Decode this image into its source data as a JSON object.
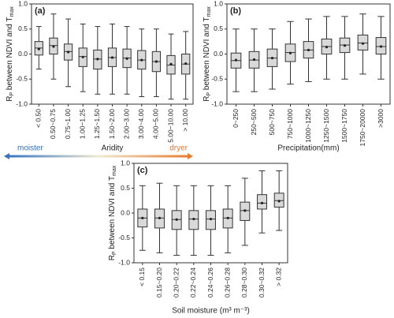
{
  "chart_data": [
    {
      "type": "box",
      "panel_label": "(a)",
      "xlabel": "Aridity",
      "arrow_labels": [
        "moister",
        "dryer"
      ],
      "ylabel_parts": [
        "R",
        "P",
        " between NDVI and T",
        "max"
      ],
      "categories": [
        "< 0.50",
        "0.50~0.75",
        "0.75~1.00",
        "1.00~1.25",
        "1.25~1.50",
        "1.50~2.00",
        "2.00~3.00",
        "3.00~4.00",
        "4.00~5.00",
        "5.00~10.00",
        "> 10.00"
      ],
      "whisker_low": [
        -0.3,
        -0.5,
        -0.65,
        -0.75,
        -0.8,
        -0.8,
        -0.8,
        -0.85,
        -0.85,
        -0.9,
        -0.9
      ],
      "q1": [
        -0.02,
        0.0,
        -0.12,
        -0.25,
        -0.3,
        -0.25,
        -0.27,
        -0.3,
        -0.35,
        -0.4,
        -0.4
      ],
      "median": [
        0.12,
        0.17,
        0.05,
        -0.05,
        -0.1,
        -0.07,
        -0.08,
        -0.12,
        -0.15,
        -0.22,
        -0.2
      ],
      "q3": [
        0.25,
        0.32,
        0.2,
        0.12,
        0.08,
        0.12,
        0.1,
        0.07,
        0.05,
        -0.03,
        0.0
      ],
      "whisker_high": [
        0.55,
        0.8,
        0.7,
        0.6,
        0.55,
        0.6,
        0.55,
        0.5,
        0.5,
        0.4,
        0.45
      ],
      "mean": [
        0.1,
        0.15,
        0.04,
        -0.06,
        -0.1,
        -0.07,
        -0.09,
        -0.12,
        -0.15,
        -0.2,
        -0.19
      ],
      "color": "#d9d9d9",
      "ylim": [
        -1,
        1
      ],
      "yticks": [
        {
          "value": -1,
          "label": "-1.0"
        },
        -0.5,
        {
          "value": 0,
          "label": "0.0"
        },
        0.5,
        {
          "value": 1,
          "label": "1.0"
        }
      ]
    },
    {
      "type": "box",
      "panel_label": "(b)",
      "xlabel": "Precipitation(mm)",
      "ylabel_parts": [
        "R",
        "P",
        " between NDVI and T",
        "max"
      ],
      "categories": [
        "0~250",
        "250~500",
        "500~750",
        "750~1000",
        "1000~1250",
        "1250~1500",
        "1500~1750",
        "1750~20000",
        ">3000"
      ],
      "whisker_low": [
        -0.75,
        -0.75,
        -0.7,
        -0.6,
        -0.55,
        -0.5,
        -0.5,
        -0.4,
        -0.5
      ],
      "q1": [
        -0.28,
        -0.28,
        -0.25,
        -0.15,
        -0.08,
        0.0,
        0.03,
        0.08,
        0.0
      ],
      "median": [
        -0.13,
        -0.12,
        -0.08,
        0.03,
        0.08,
        0.15,
        0.18,
        0.22,
        0.15
      ],
      "q3": [
        0.02,
        0.05,
        0.1,
        0.2,
        0.25,
        0.3,
        0.32,
        0.38,
        0.33
      ],
      "whisker_high": [
        0.5,
        0.5,
        0.5,
        0.65,
        0.7,
        0.75,
        0.75,
        0.8,
        0.75
      ],
      "mean": [
        -0.12,
        -0.11,
        -0.08,
        0.02,
        0.08,
        0.14,
        0.17,
        0.21,
        0.15
      ],
      "color": "#d9d9d9",
      "ylim": [
        -1,
        1
      ],
      "yticks": [
        {
          "value": -1,
          "label": "-1.0"
        },
        -0.5,
        {
          "value": 0,
          "label": "0.0"
        },
        0.5,
        {
          "value": 1,
          "label": "1.0"
        }
      ]
    },
    {
      "type": "box",
      "panel_label": "(c)",
      "xlabel": "Soil moisture (m³ m⁻³)",
      "ylabel_parts": [
        "R",
        "P",
        " between NDVI and T",
        "max"
      ],
      "categories": [
        "< 0.15",
        "0.15~0.20",
        "0.20~0.22",
        "0.22~0.24",
        "0.24~0.26",
        "0.26~0.28",
        "0.28~0.30",
        "0.30~0.32",
        "> 0.32"
      ],
      "whisker_low": [
        -0.75,
        -0.8,
        -0.85,
        -0.85,
        -0.85,
        -0.8,
        -0.65,
        -0.4,
        -0.35
      ],
      "q1": [
        -0.28,
        -0.3,
        -0.33,
        -0.33,
        -0.33,
        -0.3,
        -0.15,
        0.08,
        0.12
      ],
      "median": [
        -0.1,
        -0.1,
        -0.13,
        -0.12,
        -0.12,
        -0.1,
        0.05,
        0.2,
        0.25
      ],
      "q3": [
        0.08,
        0.08,
        0.05,
        0.05,
        0.05,
        0.08,
        0.22,
        0.37,
        0.4
      ],
      "whisker_high": [
        0.55,
        0.6,
        0.55,
        0.55,
        0.55,
        0.55,
        0.7,
        0.85,
        0.85
      ],
      "mean": [
        -0.1,
        -0.1,
        -0.13,
        -0.12,
        -0.12,
        -0.1,
        0.05,
        0.2,
        0.24
      ],
      "color": "#d9d9d9",
      "ylim": [
        -1,
        1
      ],
      "yticks": [
        {
          "value": -1,
          "label": "-1.0"
        },
        -0.5,
        {
          "value": 0,
          "label": "0.0"
        },
        0.5,
        {
          "value": 1,
          "label": "1.0"
        }
      ]
    }
  ]
}
